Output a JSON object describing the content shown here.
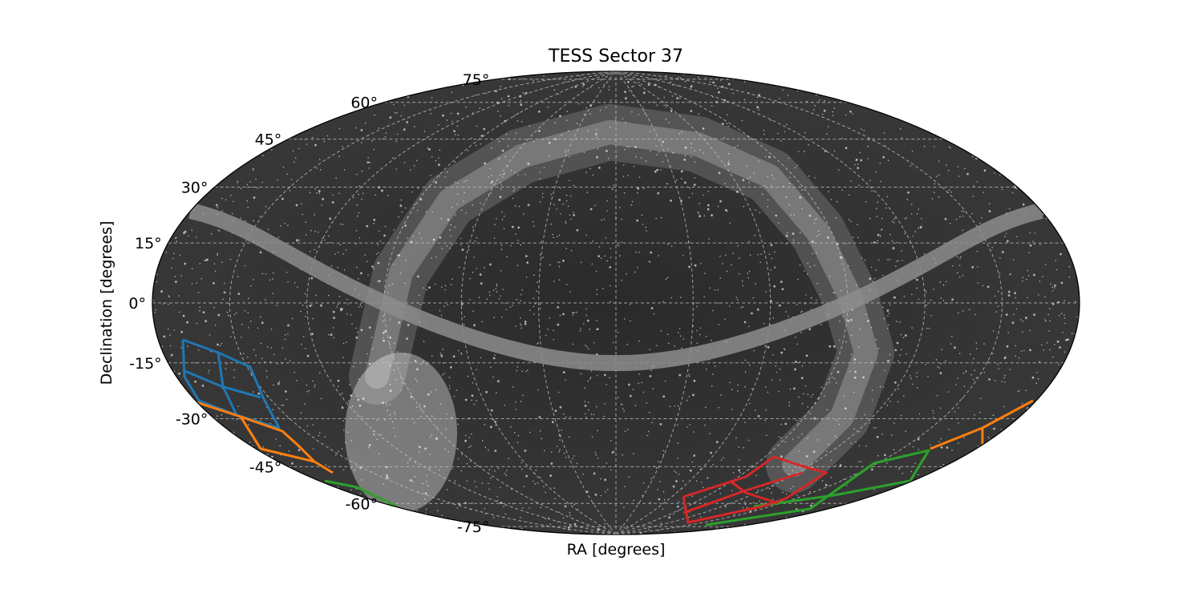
{
  "chart_data": {
    "type": "sky-map",
    "projection": "aitoff",
    "title": "TESS Sector 37",
    "xlabel": "RA [degrees]",
    "ylabel": "Declination [degrees]",
    "dec_ticks": [
      {
        "value": 75,
        "label": "75°"
      },
      {
        "value": 60,
        "label": "60°"
      },
      {
        "value": 45,
        "label": "45°"
      },
      {
        "value": 30,
        "label": "30°"
      },
      {
        "value": 15,
        "label": "15°"
      },
      {
        "value": 0,
        "label": "0°"
      },
      {
        "value": -15,
        "label": "-15°"
      },
      {
        "value": -30,
        "label": "-30°"
      },
      {
        "value": -45,
        "label": "-45°"
      },
      {
        "value": -60,
        "label": "-60°"
      },
      {
        "value": -75,
        "label": "-75°"
      }
    ],
    "grid": true,
    "background": "all-sky star density (grayscale)",
    "camera_footprints": [
      {
        "camera": 1,
        "color": "#1f77b4"
      },
      {
        "camera": 2,
        "color": "#ff7f0e"
      },
      {
        "camera": 3,
        "color": "#2ca02c"
      },
      {
        "camera": 4,
        "color": "#d62728"
      }
    ],
    "ecliptic_band_color": "#8c8c8c"
  }
}
